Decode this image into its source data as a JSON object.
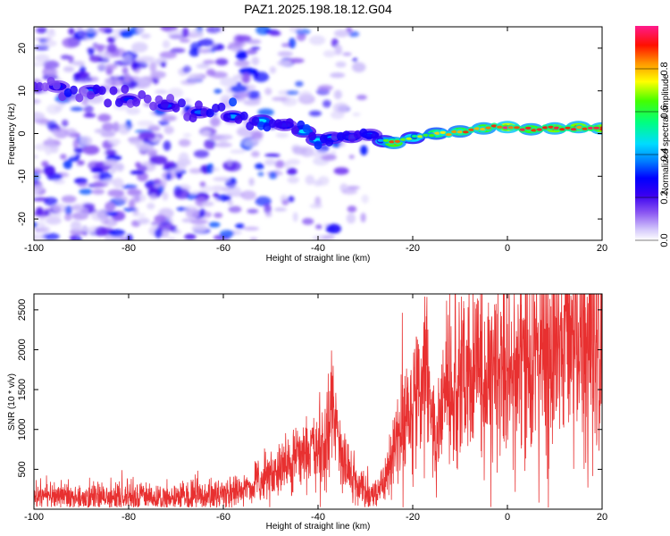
{
  "chart_data": [
    {
      "type": "heatmap",
      "title": "PAZ1.2025.198.18.12.G04",
      "xlabel": "Height of straight line (km)",
      "ylabel": "Frequency (Hz)",
      "xlim": [
        -100,
        20
      ],
      "ylim": [
        -25,
        25
      ],
      "xticks": [
        -100,
        -80,
        -60,
        -40,
        -20,
        0,
        20
      ],
      "yticks": [
        -20,
        -10,
        0,
        10,
        20
      ],
      "colorbar": {
        "label": "Normalized spectral amplitude",
        "range": [
          0.0,
          1.0
        ],
        "ticks": [
          "0.0",
          "0.2",
          "0.4",
          "0.6",
          "0.8"
        ],
        "colormap": [
          "#ffffff",
          "#b8a8f5",
          "#5a00e6",
          "#0000ff",
          "#00c8ff",
          "#00ff66",
          "#ffff00",
          "#ff8800",
          "#ff0000",
          "#ff1a8c"
        ]
      },
      "ridge": {
        "x": [
          -95,
          -88,
          -80,
          -72,
          -65,
          -58,
          -52,
          -47,
          -43,
          -40,
          -37,
          -33,
          -29,
          -26,
          -24,
          -20,
          -15,
          -10,
          -5,
          0,
          5,
          10,
          15,
          20
        ],
        "frequency": [
          11,
          10,
          8,
          6.5,
          5,
          4,
          3,
          2,
          0.5,
          -1.5,
          -1,
          -0.8,
          -0.3,
          -1.8,
          -2.2,
          -1,
          0,
          0.5,
          1.2,
          1.5,
          1,
          1.2,
          1.5,
          1.2
        ],
        "amplitude": [
          0.3,
          0.35,
          0.3,
          0.33,
          0.35,
          0.4,
          0.45,
          0.35,
          0.45,
          0.45,
          0.4,
          0.4,
          0.35,
          0.55,
          0.85,
          0.6,
          0.75,
          0.8,
          0.85,
          0.95,
          0.85,
          0.9,
          0.9,
          0.9
        ]
      },
      "background_noise": {
        "x_range": [
          -100,
          -30
        ],
        "frequency_range": [
          -25,
          25
        ],
        "amplitude_max": 0.3
      }
    },
    {
      "type": "line",
      "title": "",
      "xlabel": "Height of straight line (km)",
      "ylabel": "SNR (10 * v/v)",
      "xlim": [
        -100,
        20
      ],
      "ylim": [
        0,
        2700
      ],
      "xticks": [
        -100,
        -80,
        -60,
        -40,
        -20,
        0,
        20
      ],
      "yticks": [
        500,
        1000,
        1500,
        2000,
        2500
      ],
      "color": "#e83030",
      "series": [
        {
          "x": [
            -100,
            -90,
            -80,
            -70,
            -60,
            -55,
            -50,
            -45,
            -42,
            -40,
            -38,
            -37,
            -35,
            -32,
            -30,
            -28,
            -26,
            -24,
            -22,
            -20,
            -18,
            -17,
            -16,
            -15,
            -13,
            -10,
            -8,
            -5,
            -2,
            0,
            2,
            5,
            8,
            10,
            12,
            15,
            17,
            18,
            19,
            20
          ],
          "y": [
            150,
            150,
            150,
            150,
            170,
            250,
            420,
            600,
            700,
            650,
            900,
            1300,
            600,
            350,
            200,
            180,
            350,
            750,
            1100,
            1300,
            1500,
            1800,
            1100,
            950,
            1500,
            1700,
            1650,
            1650,
            1800,
            1700,
            1750,
            1950,
            2100,
            2000,
            2200,
            2050,
            2200,
            2350,
            2450,
            2250
          ]
        }
      ]
    }
  ]
}
